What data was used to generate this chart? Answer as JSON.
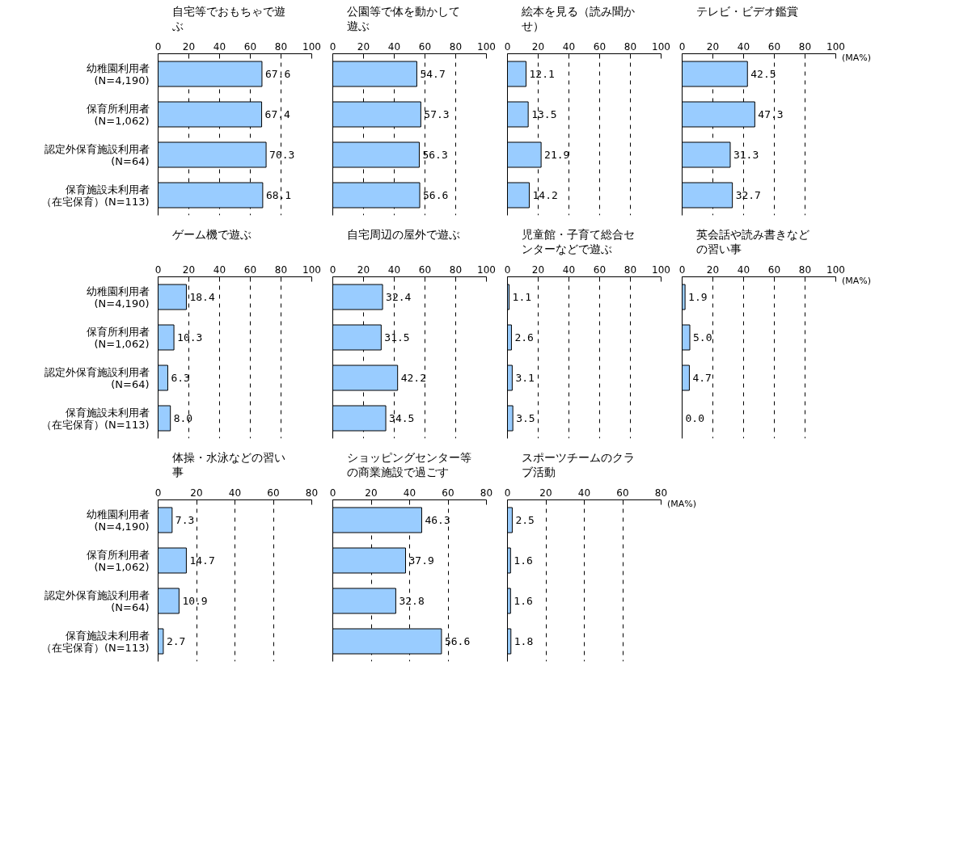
{
  "chart_data": [
    {
      "type": "bar",
      "orientation": "horizontal",
      "title": "自宅等でおもちゃで遊ぶ",
      "categories": [
        "幼稚園利用者(N=4,190)",
        "保育所利用者(N=1,062)",
        "認定外保育施設利用者(N=64)",
        "保育施設未利用者（在宅保育）(N=113)"
      ],
      "values": [
        67.6,
        67.4,
        70.3,
        68.1
      ],
      "color": "#99ccff",
      "xlim": [
        0,
        100
      ],
      "xticks": [
        0,
        20,
        40,
        60,
        80,
        100
      ],
      "grid": "x",
      "data_labels": true
    },
    {
      "type": "bar",
      "orientation": "horizontal",
      "title": "公園等で体を動かして遊ぶ",
      "categories": [
        "幼稚園利用者(N=4,190)",
        "保育所利用者(N=1,062)",
        "認定外保育施設利用者(N=64)",
        "保育施設未利用者（在宅保育）(N=113)"
      ],
      "values": [
        54.7,
        57.3,
        56.3,
        56.6
      ],
      "color": "#99ccff",
      "xlim": [
        0,
        100
      ],
      "xticks": [
        0,
        20,
        40,
        60,
        80,
        100
      ],
      "grid": "x",
      "data_labels": true,
      "tick_labels": "x"
    },
    {
      "type": "bar",
      "orientation": "horizontal",
      "title": "絵本を見る（読み聞かせ）",
      "categories": [
        "幼稚園利用者(N=4,190)",
        "保育所利用者(N=1,062)",
        "認定外保育施設利用者(N=64)",
        "保育施設未利用者（在宅保育）(N=113)"
      ],
      "values": [
        12.1,
        13.5,
        21.9,
        14.2
      ],
      "color": "#99ccff",
      "xlim": [
        0,
        100
      ],
      "xticks": [
        0,
        20,
        40,
        60,
        80,
        100
      ],
      "grid": "x",
      "data_labels": true,
      "tick_labels": "x"
    },
    {
      "type": "bar",
      "orientation": "horizontal",
      "title": "テレビ・ビデオ鑑賞",
      "xlabel": "(MA%)",
      "categories": [
        "幼稚園利用者(N=4,190)",
        "保育所利用者(N=1,062)",
        "認定外保育施設利用者(N=64)",
        "保育施設未利用者（在宅保育）(N=113)"
      ],
      "values": [
        42.5,
        47.3,
        31.3,
        32.7
      ],
      "color": "#99ccff",
      "xlim": [
        0,
        100
      ],
      "xticks": [
        0,
        20,
        40,
        60,
        80,
        100
      ],
      "grid": "x",
      "data_labels": true,
      "tick_labels": "x"
    },
    {
      "type": "bar",
      "orientation": "horizontal",
      "title": "ゲーム機で遊ぶ",
      "categories": [
        "幼稚園利用者(N=4,190)",
        "保育所利用者(N=1,062)",
        "認定外保育施設利用者(N=64)",
        "保育施設未利用者（在宅保育）(N=113)"
      ],
      "values": [
        18.4,
        10.3,
        6.3,
        8.0
      ],
      "value_labels": [
        "18.4",
        "10.3",
        "6.3",
        "8.0"
      ],
      "color": "#99ccff",
      "xlim": [
        0,
        100
      ],
      "xticks": [
        0,
        20,
        40,
        60,
        80,
        100
      ],
      "grid": "x"
    },
    {
      "type": "bar",
      "orientation": "horizontal",
      "title": "自宅周辺の屋外で遊ぶ",
      "categories": [
        "幼稚園利用者(N=4,190)",
        "保育所利用者(N=1,062)",
        "認定外保育施設利用者(N=64)",
        "保育施設未利用者（在宅保育）(N=113)"
      ],
      "values": [
        32.4,
        31.5,
        42.2,
        34.5
      ],
      "color": "#99ccff",
      "xlim": [
        0,
        100
      ],
      "xticks": [
        0,
        20,
        40,
        60,
        80,
        100
      ],
      "grid": "x",
      "data_labels": true,
      "tick_labels": "x"
    },
    {
      "type": "bar",
      "orientation": "horizontal",
      "title": "児童館・子育て総合センターなどで遊ぶ",
      "categories": [
        "幼稚園利用者(N=4,190)",
        "保育所利用者(N=1,062)",
        "認定外保育施設利用者(N=64)",
        "保育施設未利用者（在宅保育）(N=113)"
      ],
      "values": [
        1.1,
        2.6,
        3.1,
        3.5
      ],
      "color": "#99ccff",
      "xlim": [
        0,
        100
      ],
      "xticks": [
        0,
        20,
        40,
        60,
        80,
        100
      ],
      "grid": "x",
      "data_labels": true,
      "tick_labels": "x"
    },
    {
      "type": "bar",
      "orientation": "horizontal",
      "title": "英会話や読み書きなどの習い事",
      "xlabel": "(MA%)",
      "categories": [
        "幼稚園利用者(N=4,190)",
        "保育所利用者(N=1,062)",
        "認定外保育施設利用者(N=64)",
        "保育施設未利用者（在宅保育）(N=113)"
      ],
      "values": [
        1.9,
        5.0,
        4.7,
        0.0
      ],
      "value_labels": [
        "1.9",
        "5.0",
        "4.7",
        "0.0"
      ],
      "color": "#99ccff",
      "xlim": [
        0,
        100
      ],
      "xticks": [
        0,
        20,
        40,
        60,
        80,
        100
      ],
      "grid": "x",
      "tick_labels": "x"
    },
    {
      "type": "bar",
      "orientation": "horizontal",
      "title": "体操・水泳などの習い事",
      "categories": [
        "幼稚園利用者(N=4,190)",
        "保育所利用者(N=1,062)",
        "認定外保育施設利用者(N=64)",
        "保育施設未利用者（在宅保育）(N=113)"
      ],
      "values": [
        7.3,
        14.7,
        10.9,
        2.7
      ],
      "color": "#99ccff",
      "xlim": [
        0,
        80
      ],
      "xticks": [
        0,
        20,
        40,
        60,
        80
      ],
      "grid": "x",
      "data_labels": true
    },
    {
      "type": "bar",
      "orientation": "horizontal",
      "title": "ショッピングセンター等の商業施設で過ごす",
      "categories": [
        "幼稚園利用者(N=4,190)",
        "保育所利用者(N=1,062)",
        "認定外保育施設利用者(N=64)",
        "保育施設未利用者（在宅保育）(N=113)"
      ],
      "values": [
        46.3,
        37.9,
        32.8,
        56.6
      ],
      "color": "#99ccff",
      "xlim": [
        0,
        80
      ],
      "xticks": [
        0,
        20,
        40,
        60,
        80
      ],
      "grid": "x",
      "data_labels": true,
      "tick_labels": "x"
    },
    {
      "type": "bar",
      "orientation": "horizontal",
      "title": "スポーツチームのクラブ活動",
      "xlabel": "(MA%)",
      "categories": [
        "幼稚園利用者(N=4,190)",
        "保育所利用者(N=1,062)",
        "認定外保育施設利用者(N=64)",
        "保育施設未利用者（在宅保育）(N=113)"
      ],
      "values": [
        2.5,
        1.6,
        1.6,
        1.8
      ],
      "color": "#99ccff",
      "xlim": [
        0,
        80
      ],
      "xticks": [
        0,
        20,
        40,
        60,
        80
      ],
      "grid": "x",
      "data_labels": true,
      "tick_labels": "x"
    }
  ]
}
